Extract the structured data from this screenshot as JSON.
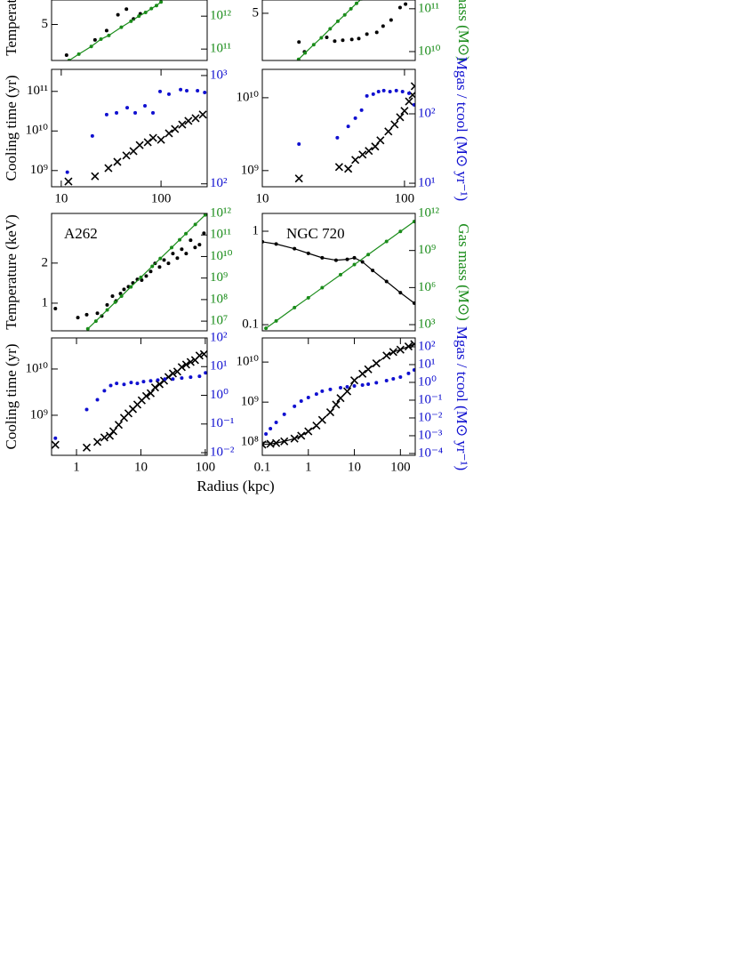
{
  "chart_data": [
    {
      "type": "scatter",
      "ylabel": "Temperature (keV)",
      "xscale": "log",
      "yscale": "log",
      "y2scale": "log",
      "xlim": [
        8,
        290
      ],
      "ylim": [
        2.7,
        7.6
      ],
      "yticks": [
        5
      ],
      "y2lim": [
        45000000000.0,
        3100000000000.0
      ],
      "y2ticks": [
        {
          "value": 100000000000.0,
          "label": "10¹¹"
        },
        {
          "value": 1000000000000.0,
          "label": "10¹²"
        }
      ],
      "series": [
        {
          "color": "#000000",
          "marker": "dot",
          "line": false,
          "x": [
            11.3,
            21.8,
            28.5,
            37,
            45,
            53,
            62
          ],
          "values": [
            2.96,
            3.84,
            4.5,
            5.9,
            6.5,
            5.5,
            6.0
          ]
        },
        {
          "color": "#1a8c1a",
          "marker": "dot",
          "line": true,
          "axis": "y2",
          "x": [
            12,
            15,
            20,
            25,
            30,
            40,
            50,
            60,
            70,
            80,
            90,
            100
          ],
          "values": [
            45000000000.0,
            70000000000.0,
            120000000000.0,
            200000000000.0,
            260000000000.0,
            460000000000.0,
            700000000000.0,
            1000000000000.0,
            1300000000000.0,
            1700000000000.0,
            2100000000000.0,
            2700000000000.0
          ]
        }
      ]
    },
    {
      "type": "scatter",
      "ylabel": "Cooling time (yr)",
      "xscale": "log",
      "yscale": "log",
      "y2scale": "log",
      "xlim": [
        8,
        290
      ],
      "xticks": [
        10,
        100
      ],
      "ylim": [
        390000000.0,
        360000000000.0
      ],
      "yticks": [
        {
          "value": 1000000000.0,
          "label": "10⁹"
        },
        {
          "value": 10000000000.0,
          "label": "10¹⁰"
        },
        {
          "value": 100000000000.0,
          "label": "10¹¹"
        }
      ],
      "y2lim": [
        94,
        1140
      ],
      "y2ticks": [
        {
          "value": 100,
          "label": "10²"
        },
        {
          "value": 1000,
          "label": "10³"
        }
      ],
      "series": [
        {
          "color": "#000000",
          "marker": "cross",
          "line": false,
          "x": [
            11.8,
            21.8,
            29.7,
            36.5,
            44.9,
            52.9,
            61.1,
            73.6,
            83.3,
            100,
            120,
            138,
            163,
            188,
            222,
            262
          ],
          "values": [
            530000000.0,
            720000000.0,
            1150000000.0,
            1660000000.0,
            2400000000.0,
            3100000000.0,
            4400000000.0,
            5200000000.0,
            6700000000.0,
            6000000000.0,
            8700000000.0,
            11200000000.0,
            14500000000.0,
            18000000000.0,
            21000000000.0,
            26000000000.0
          ]
        },
        {
          "color": "#1010d0",
          "marker": "dot",
          "line": false,
          "axis": "y2",
          "x": [
            11.5,
            20.5,
            28.5,
            35.8,
            45.8,
            55.1,
            69,
            83,
            97.8,
            120,
            157,
            181,
            232,
            274
          ],
          "values": [
            128,
            277,
            436,
            452,
            505,
            452,
            525,
            452,
            713,
            673,
            741,
            725,
            725,
            698
          ]
        }
      ]
    },
    {
      "type": "scatter",
      "y2label": "Gas mass (M⊙)",
      "xscale": "log",
      "yscale": "log",
      "y2scale": "log",
      "xlim": [
        10,
        119
      ],
      "ylim": [
        2.2,
        6.3
      ],
      "yticks": [
        5
      ],
      "y2lim": [
        6200000000.0,
        160000000000.0
      ],
      "y2ticks": [
        {
          "value": 10000000000.0,
          "label": "10¹⁰"
        },
        {
          "value": 100000000000.0,
          "label": "10¹¹"
        }
      ],
      "series": [
        {
          "color": "#000000",
          "marker": "dot",
          "line": false,
          "x": [
            18.1,
            19.8,
            28.4,
            32.3,
            36.8,
            42.6,
            47.7,
            54.4,
            63.8,
            70.7,
            80.5,
            93.1,
            101.7
          ],
          "values": [
            3.03,
            2.56,
            3.29,
            3.08,
            3.13,
            3.17,
            3.22,
            3.48,
            3.59,
            4.0,
            4.45,
            5.52,
            5.87
          ]
        },
        {
          "color": "#1a8c1a",
          "marker": "dot",
          "line": true,
          "axis": "y2",
          "x": [
            18,
            20,
            23,
            26,
            30,
            34,
            38,
            42,
            46,
            50
          ],
          "values": [
            6600000000.0,
            9300000000.0,
            14500000000.0,
            21000000000.0,
            34000000000.0,
            51000000000.0,
            72000000000.0,
            100000000000.0,
            134000000000.0,
            170000000000.0
          ]
        }
      ]
    },
    {
      "type": "scatter",
      "y2label": "Mgas / tcool (M⊙ yr⁻¹)",
      "xscale": "log",
      "yscale": "log",
      "y2scale": "log",
      "xlim": [
        10,
        119
      ],
      "xticks": [
        10,
        100
      ],
      "ylim": [
        600000000.0,
        24500000000.0
      ],
      "yticks": [
        {
          "value": 1000000000.0,
          "label": "10⁹"
        },
        {
          "value": 10000000000.0,
          "label": "10¹⁰"
        }
      ],
      "y2lim": [
        8.9,
        437
      ],
      "y2ticks": [
        {
          "value": 10,
          "label": "10¹"
        },
        {
          "value": 100,
          "label": "10²"
        }
      ],
      "series": [
        {
          "color": "#000000",
          "marker": "cross",
          "line": false,
          "x": [
            18.1,
            34.7,
            40.2,
            45.1,
            50.7,
            56.1,
            62.2,
            67.7,
            77.0,
            85.2,
            93.1,
            100,
            107.6,
            114,
            118
          ],
          "values": [
            780000000.0,
            1120000000.0,
            1060000000.0,
            1400000000.0,
            1660000000.0,
            1860000000.0,
            2140000000.0,
            2600000000.0,
            3450000000.0,
            4300000000.0,
            5400000000.0,
            6600000000.0,
            8900000000.0,
            10900000000.0,
            14400000000.0
          ]
        },
        {
          "color": "#1010d0",
          "marker": "dot",
          "line": false,
          "axis": "y2",
          "x": [
            18.1,
            33.7,
            40.2,
            45.1,
            49.9,
            54.4,
            60.3,
            65.7,
            71.5,
            79.1,
            87.6,
            96.9,
            107.6,
            117
          ],
          "values": [
            36.7,
            45.2,
            66,
            86.5,
            113,
            181,
            192,
            209,
            216,
            209,
            216,
            209,
            198,
            135
          ]
        }
      ]
    },
    {
      "type": "scatter",
      "title": "A262",
      "ylabel": "Temperature (keV)",
      "xscale": "log",
      "yscale": "log",
      "y2scale": "log",
      "xlim": [
        0.41,
        107
      ],
      "ylim": [
        0.62,
        4.72
      ],
      "yticks": [
        1,
        2
      ],
      "y2lim": [
        3550000.0,
        1000000000000.0
      ],
      "y2ticks": [
        {
          "value": 10000000.0,
          "label": "10⁷"
        },
        {
          "value": 100000000.0,
          "label": "10⁸"
        },
        {
          "value": 1000000000.0,
          "label": "10⁹"
        },
        {
          "value": 10000000000.0,
          "label": "10¹⁰"
        },
        {
          "value": 100000000000.0,
          "label": "10¹¹"
        },
        {
          "value": 1000000000000.0,
          "label": "10¹²"
        }
      ],
      "series": [
        {
          "color": "#000000",
          "marker": "dot",
          "line": false,
          "x": [
            0.47,
            1.05,
            1.44,
            2.11,
            2.47,
            2.99,
            3.62,
            4.11,
            4.82,
            5.47,
            6.41,
            7.52,
            8.81,
            10.3,
            12.1,
            14.2,
            16.6,
            19.5,
            22.9,
            26.8,
            31.4,
            36.8,
            43.1,
            50.5,
            59.2,
            69.4,
            81.3,
            95.3
          ],
          "values": [
            0.91,
            0.78,
            0.82,
            0.84,
            0.8,
            0.97,
            1.13,
            1.04,
            1.18,
            1.27,
            1.33,
            1.42,
            1.51,
            1.49,
            1.6,
            1.73,
            1.99,
            1.87,
            2.11,
            1.99,
            2.36,
            2.18,
            2.54,
            2.36,
            2.97,
            2.62,
            2.75,
            3.35
          ]
        },
        {
          "color": "#1a8c1a",
          "marker": "dot",
          "line": true,
          "axis": "y2",
          "x": [
            1.5,
            2,
            3,
            4,
            5,
            7,
            10,
            15,
            20,
            30,
            40,
            50,
            70,
            100
          ],
          "values": [
            4400000.0,
            10000000.0,
            33000000.0,
            76000000.0,
            145000000.0,
            390000000.0,
            1080000000.0,
            3500000000.0,
            8100000000.0,
            26000000000.0,
            60000000000.0,
            115000000000.0,
            310000000000.0,
            860000000000.0
          ]
        }
      ]
    },
    {
      "type": "scatter",
      "title": "NGC 720",
      "y2label": "Gas mass (M⊙)",
      "xscale": "log",
      "yscale": "log",
      "y2scale": "log",
      "xlim": [
        0.1,
        210
      ],
      "ylim": [
        0.086,
        1.55
      ],
      "yticks": [
        0.1,
        1
      ],
      "y2lim": [
        316,
        1000000000000.0
      ],
      "y2ticks": [
        {
          "value": 1000,
          "label": "10³"
        },
        {
          "value": 1000000.0,
          "label": "10⁶"
        },
        {
          "value": 1000000000.0,
          "label": "10⁹"
        },
        {
          "value": 1000000000000.0,
          "label": "10¹²"
        }
      ],
      "series": [
        {
          "color": "#000000",
          "marker": "dot",
          "line": true,
          "x": [
            0.1,
            0.2,
            0.5,
            1,
            2,
            4,
            7,
            10,
            15,
            25,
            50,
            100,
            200
          ],
          "values": [
            0.77,
            0.73,
            0.65,
            0.58,
            0.52,
            0.49,
            0.5,
            0.52,
            0.47,
            0.38,
            0.29,
            0.22,
            0.17
          ]
        },
        {
          "color": "#1a8c1a",
          "marker": "dot",
          "line": true,
          "axis": "y2",
          "x": [
            0.12,
            0.2,
            0.5,
            1,
            2,
            5,
            10,
            20,
            50,
            100,
            200
          ],
          "values": [
            510,
            2000,
            24000,
            150000,
            970000,
            11000000.0,
            72000000.0,
            470000000.0,
            5400000000.0,
            35000000000.0,
            220000000000.0
          ]
        }
      ]
    },
    {
      "type": "scatter",
      "ylabel": "Cooling time (yr)",
      "xlabel": "Radius (kpc)",
      "xscale": "log",
      "yscale": "log",
      "y2scale": "log",
      "xlim": [
        0.41,
        107
      ],
      "xticks": [
        1,
        10,
        100
      ],
      "ylim": [
        136000000.0,
        47000000000.0
      ],
      "yticks": [
        {
          "value": 1000000000.0,
          "label": "10⁹"
        },
        {
          "value": 10000000000.0,
          "label": "10¹⁰"
        }
      ],
      "y2lim": [
        0.0081,
        100
      ],
      "y2ticks": [
        {
          "value": 0.01,
          "label": "10⁻²"
        },
        {
          "value": 0.1,
          "label": "10⁻¹"
        },
        {
          "value": 1,
          "label": "10⁰"
        },
        {
          "value": 10,
          "label": "10¹"
        },
        {
          "value": 100,
          "label": "10²"
        }
      ],
      "series": [
        {
          "color": "#000000",
          "marker": "cross",
          "line": false,
          "x": [
            0.47,
            1.44,
            2.11,
            2.71,
            3.29,
            3.73,
            4.52,
            5.47,
            6.41,
            7.52,
            8.81,
            10.3,
            12.1,
            14.2,
            16.6,
            19.5,
            22.9,
            26.8,
            31.4,
            36.8,
            43.1,
            50.5,
            59.2,
            69.4,
            81.3,
            95.3
          ],
          "values": [
            230000000.0,
            200000000.0,
            265000000.0,
            330000000.0,
            360000000.0,
            450000000.0,
            620000000.0,
            880000000.0,
            1100000000.0,
            1360000000.0,
            1700000000.0,
            2100000000.0,
            2600000000.0,
            3000000000.0,
            4000000000.0,
            4700000000.0,
            5600000000.0,
            6700000000.0,
            8000000000.0,
            8800000000.0,
            11000000000.0,
            12500000000.0,
            14200000000.0,
            15600000000.0,
            19500000000.0,
            21000000000.0
          ]
        },
        {
          "color": "#1010d0",
          "marker": "dot",
          "line": false,
          "axis": "y2",
          "x": [
            0.47,
            1.44,
            2.11,
            2.71,
            3.4,
            4.2,
            5.47,
            7.05,
            8.81,
            11.0,
            14.2,
            18.3,
            23.6,
            31.4,
            43.1,
            59.2,
            81.3,
            101
          ],
          "values": [
            0.032,
            0.32,
            0.7,
            1.45,
            2.2,
            2.6,
            2.4,
            2.8,
            2.6,
            3.0,
            3.2,
            3.4,
            3.7,
            3.7,
            4.0,
            4.3,
            4.6,
            6.1
          ]
        }
      ]
    },
    {
      "type": "scatter",
      "y2label": "Mgas / tcool (M⊙ yr⁻¹)",
      "xscale": "log",
      "yscale": "log",
      "y2scale": "log",
      "xlim": [
        0.1,
        210
      ],
      "xticks": [
        0.1,
        1,
        10,
        100
      ],
      "ylim": [
        47000000.0,
        40000000000.0
      ],
      "yticks": [
        {
          "value": 100000000.0,
          "label": "10⁸"
        },
        {
          "value": 1000000000.0,
          "label": "10⁹"
        },
        {
          "value": 10000000000.0,
          "label": "10¹⁰"
        }
      ],
      "y2lim": [
        7.9e-05,
        316
      ],
      "y2ticks": [
        {
          "value": 0.0001,
          "label": "10⁻⁴"
        },
        {
          "value": 0.001,
          "label": "10⁻³"
        },
        {
          "value": 0.01,
          "label": "10⁻²"
        },
        {
          "value": 0.1,
          "label": "10⁻¹"
        },
        {
          "value": 1,
          "label": "10⁰"
        },
        {
          "value": 10,
          "label": "10¹"
        },
        {
          "value": 100,
          "label": "10²"
        }
      ],
      "series": [
        {
          "color": "#000000",
          "marker": "cross",
          "line": true,
          "x": [
            0.1,
            0.15,
            0.2,
            0.3,
            0.5,
            0.7,
            1,
            1.5,
            2,
            3,
            4,
            5,
            7,
            10,
            15,
            20,
            30,
            50,
            70,
            100,
            150,
            200
          ],
          "values": [
            87000000.0,
            91000000.0,
            95000000.0,
            105000000.0,
            123000000.0,
            145000000.0,
            186000000.0,
            260000000.0,
            360000000.0,
            560000000.0,
            870000000.0,
            1260000000.0,
            1860000000.0,
            3500000000.0,
            5100000000.0,
            6600000000.0,
            9300000000.0,
            14500000000.0,
            17800000000.0,
            20400000000.0,
            24500000000.0,
            28000000000.0
          ]
        },
        {
          "color": "#1010d0",
          "marker": "dot",
          "line": false,
          "axis": "y2",
          "x": [
            0.12,
            0.15,
            0.2,
            0.3,
            0.5,
            0.7,
            1,
            1.5,
            2,
            3,
            5,
            7,
            10,
            15,
            20,
            30,
            50,
            70,
            100,
            150,
            200
          ],
          "values": [
            0.00126,
            0.0025,
            0.0056,
            0.016,
            0.045,
            0.089,
            0.14,
            0.22,
            0.32,
            0.4,
            0.5,
            0.56,
            0.63,
            0.71,
            0.79,
            0.95,
            1.26,
            1.58,
            2.0,
            3.2,
            5.0
          ]
        }
      ]
    }
  ]
}
